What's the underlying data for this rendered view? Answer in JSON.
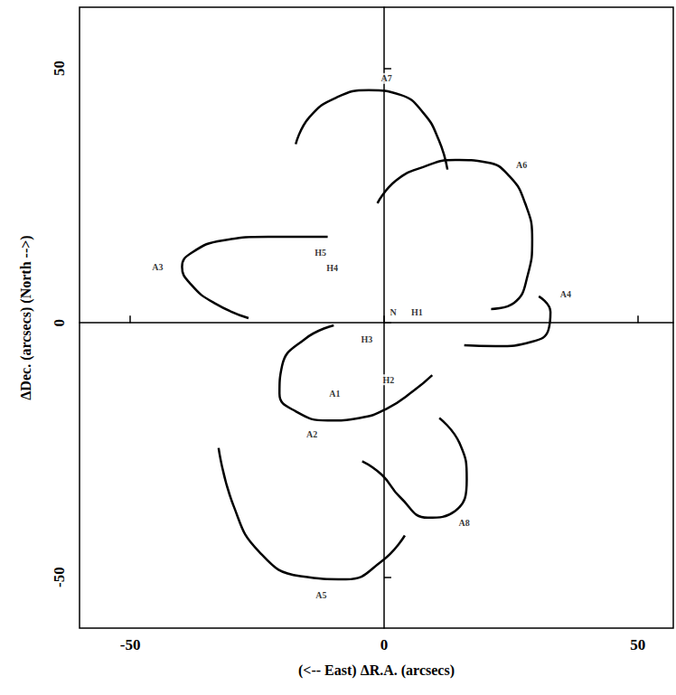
{
  "chart_data": {
    "type": "line",
    "x_label": "(<-- East) ΔR.A. (arcsecs)",
    "y_label": "ΔDec. (arcsecs) (North -->)",
    "xlim": [
      -60,
      57
    ],
    "ylim": [
      -60,
      62
    ],
    "xticks": [
      -50,
      0,
      50
    ],
    "yticks": [
      -50,
      0,
      50
    ],
    "grid": false,
    "color": "#000000",
    "curves": [
      {
        "label": "A7",
        "label_x": 0.5,
        "label_y": 48.0,
        "points": [
          [
            -17.4,
            35.1
          ],
          [
            -14.7,
            40.4
          ],
          [
            -9.3,
            44.3
          ],
          [
            -3.0,
            45.7
          ],
          [
            3.2,
            44.8
          ],
          [
            7.7,
            41.3
          ],
          [
            10.8,
            35.9
          ],
          [
            12.5,
            30.1
          ]
        ]
      },
      {
        "label": "A6",
        "label_x": 27.1,
        "label_y": 31.0,
        "points": [
          [
            -1.3,
            23.5
          ],
          [
            2.3,
            27.9
          ],
          [
            7.7,
            30.6
          ],
          [
            14.0,
            32.0
          ],
          [
            20.3,
            31.5
          ],
          [
            24.7,
            28.8
          ],
          [
            27.8,
            23.5
          ],
          [
            29.2,
            16.4
          ],
          [
            28.3,
            9.3
          ],
          [
            25.6,
            3.9
          ],
          [
            21.1,
            2.7
          ]
        ]
      },
      {
        "label": "A3",
        "label_x": -44.6,
        "label_y": 11.0,
        "points": [
          [
            -11.1,
            16.9
          ],
          [
            -22.8,
            16.9
          ],
          [
            -31.7,
            16.2
          ],
          [
            -38.0,
            13.7
          ],
          [
            -39.8,
            11.0
          ],
          [
            -38.0,
            7.5
          ],
          [
            -33.5,
            3.9
          ],
          [
            -26.7,
            0.9
          ]
        ]
      },
      {
        "label": "A4",
        "label_x": 35.8,
        "label_y": 5.7,
        "points": [
          [
            30.5,
            5.2
          ],
          [
            32.8,
            2.1
          ],
          [
            32.4,
            -1.4
          ],
          [
            29.2,
            -3.7
          ],
          [
            22.0,
            -4.6
          ],
          [
            15.8,
            -4.4
          ]
        ]
      },
      {
        "label": "A1",
        "label_x": -9.7,
        "label_y": -13.9,
        "points": [
          [
            -9.9,
            -0.5
          ],
          [
            -15.6,
            -3.2
          ],
          [
            -20.1,
            -8.5
          ],
          [
            -20.6,
            -13.9
          ],
          [
            -17.4,
            -17.4
          ],
          [
            -11.1,
            -19.2
          ],
          [
            -4.8,
            -18.7
          ],
          [
            0.5,
            -16.9
          ],
          [
            5.9,
            -13.3
          ],
          [
            9.5,
            -10.3
          ]
        ]
      },
      {
        "label": "A8",
        "label_x": 15.8,
        "label_y": -39.3,
        "points": [
          [
            10.9,
            -18.7
          ],
          [
            14.9,
            -23.7
          ],
          [
            16.3,
            -30.8
          ],
          [
            14.0,
            -37.0
          ],
          [
            8.6,
            -38.3
          ],
          [
            3.2,
            -34.3
          ],
          [
            -0.4,
            -29.9
          ],
          [
            -4.3,
            -27.2
          ]
        ]
      },
      {
        "label": "A5",
        "label_x": -12.4,
        "label_y": -53.6,
        "points": [
          [
            -32.6,
            -24.6
          ],
          [
            -29.6,
            -36.1
          ],
          [
            -24.6,
            -45.0
          ],
          [
            -16.5,
            -49.8
          ],
          [
            -7.5,
            -50.4
          ],
          [
            -0.4,
            -46.8
          ],
          [
            4.1,
            -41.8
          ]
        ]
      }
    ],
    "annotations": [
      {
        "text": "A2",
        "x": -14.2,
        "y": -21.9
      },
      {
        "text": "H5",
        "x": -12.5,
        "y": 13.7
      },
      {
        "text": "H4",
        "x": -10.2,
        "y": 10.7
      },
      {
        "text": "N",
        "x": 1.8,
        "y": 2.1
      },
      {
        "text": "H1",
        "x": 6.5,
        "y": 2.1
      },
      {
        "text": "H3",
        "x": -3.4,
        "y": -3.2
      },
      {
        "text": "H2",
        "x": 0.9,
        "y": -11.2
      }
    ]
  }
}
